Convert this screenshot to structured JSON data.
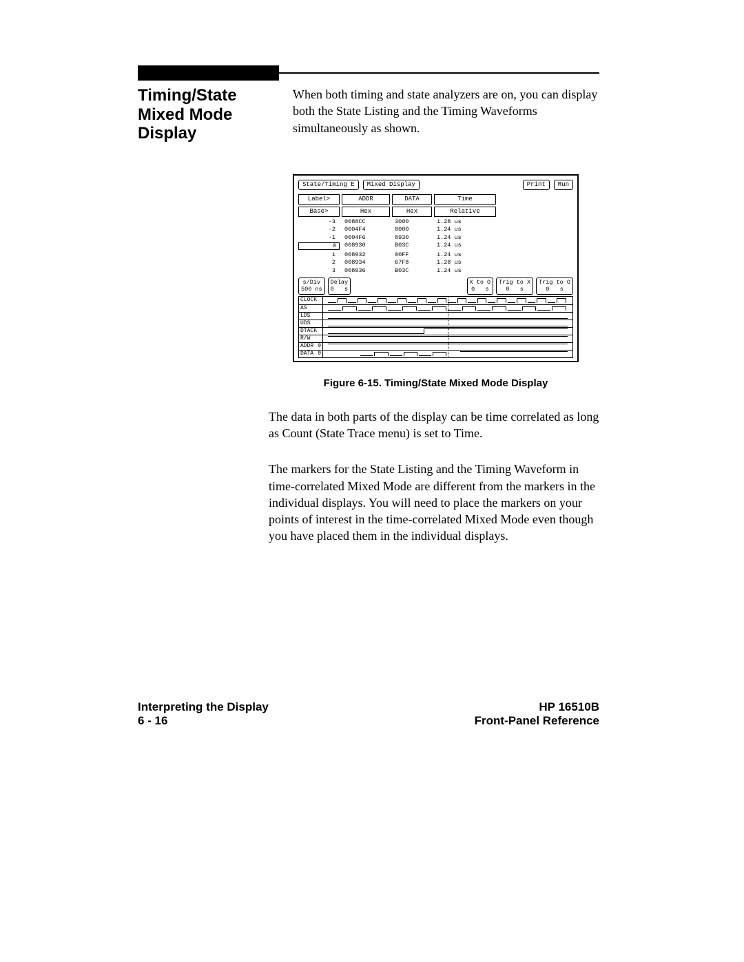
{
  "section_title": "Timing/State Mixed Mode Display",
  "intro": "When both timing and state analyzers are on, you can display both the State Listing and the Timing Waveforms simultaneously as shown.",
  "figure": {
    "top_buttons": {
      "analyzer_name": "State/Timing E",
      "mode": "Mixed Display",
      "print": "Print",
      "run": "Run"
    },
    "listing_headers": {
      "label": "Label>",
      "base": "Base>",
      "addr": "ADDR",
      "data": "DATA",
      "time": "Time",
      "addr_base": "Hex",
      "data_base": "Hex",
      "time_base": "Relative"
    },
    "listing_rows": [
      {
        "idx": "-3",
        "addr": "0088CC",
        "data": "3000",
        "time": "1.28 us"
      },
      {
        "idx": "-2",
        "addr": "0004F4",
        "data": "0000",
        "time": "1.24 us"
      },
      {
        "idx": "-1",
        "addr": "0004F6",
        "data": "8930",
        "time": "1.24 us"
      },
      {
        "idx": "0",
        "addr": "008930",
        "data": "B03C",
        "time": "1.24 us",
        "highlight": true
      },
      {
        "idx": "1",
        "addr": "008932",
        "data": "00FF",
        "time": "1.24 us"
      },
      {
        "idx": "2",
        "addr": "008934",
        "data": "67F8",
        "time": "1.28 us"
      },
      {
        "idx": "3",
        "addr": "008936",
        "data": "B03C",
        "time": "1.24 us"
      }
    ],
    "timing_params": {
      "sdiv": {
        "label": "s/Div",
        "value": "500 ns"
      },
      "delay": {
        "label": "Delay",
        "value": "0   s"
      },
      "x_to_o": {
        "label": "X to O",
        "value": "0   s"
      },
      "trig_to_x": {
        "label": "Trig to X",
        "value": "0   s"
      },
      "trig_to_o": {
        "label": "Trig to O",
        "value": "0   s"
      }
    },
    "waveform_labels": [
      "CLOCK",
      "AS",
      "LDS",
      "UDS",
      "DTACK",
      "R/W",
      "ADDR",
      "DATA"
    ]
  },
  "caption": "Figure 6-15. Timing/State Mixed Mode Display",
  "para1": "The data in both parts of the display can be time correlated as long as Count (State Trace menu) is set to Time.",
  "para2": "The markers for the State Listing and the Timing Waveform in time-correlated Mixed Mode are different from the markers in the individual displays. You will need to place the markers on your points of interest in the time-correlated Mixed Mode even though you have placed them in the individual displays.",
  "footer": {
    "left_top": "Interpreting the Display",
    "left_bottom": "6 - 16",
    "right_top": "HP 16510B",
    "right_bottom": "Front-Panel Reference"
  }
}
